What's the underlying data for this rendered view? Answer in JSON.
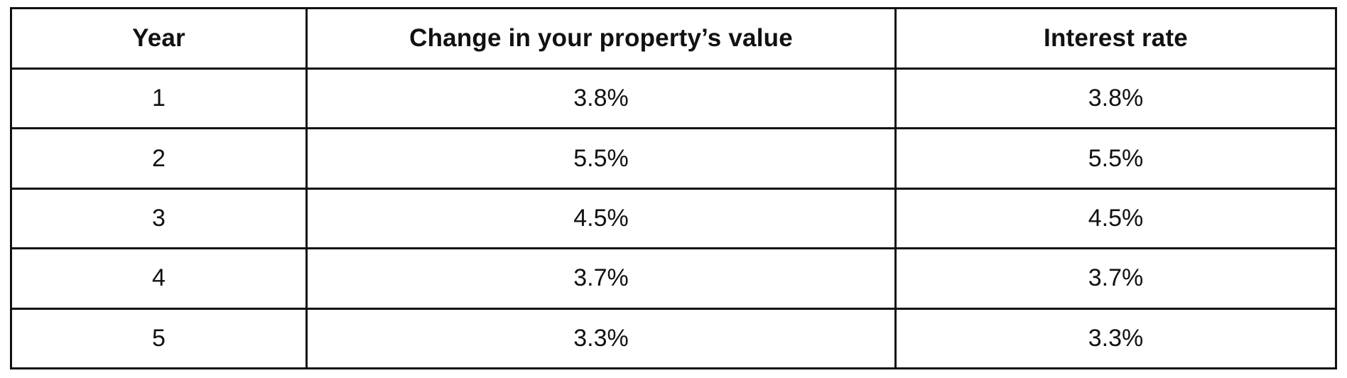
{
  "chart_data": {
    "type": "table",
    "columns": [
      "Year",
      "Change in your property’s value",
      "Interest rate"
    ],
    "rows": [
      [
        "1",
        "3.8%",
        "3.8%"
      ],
      [
        "2",
        "5.5%",
        "5.5%"
      ],
      [
        "3",
        "4.5%",
        "4.5%"
      ],
      [
        "4",
        "3.7%",
        "3.7%"
      ],
      [
        "5",
        "3.3%",
        "3.3%"
      ]
    ]
  },
  "colors": {
    "border": "#111111",
    "background": "#ffffff",
    "text": "#111111"
  }
}
